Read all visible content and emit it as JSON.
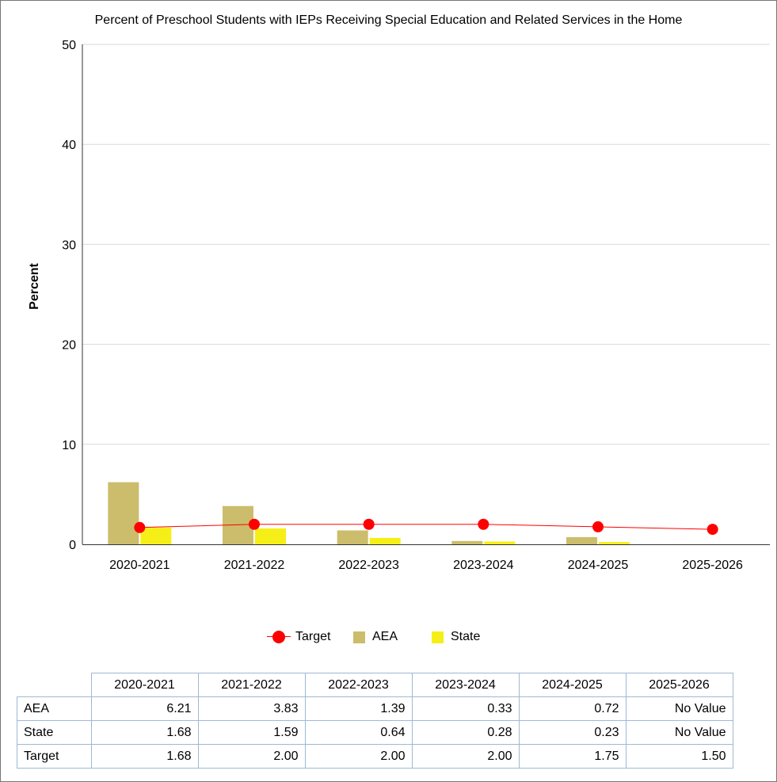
{
  "chart_data": {
    "type": "bar",
    "title": "Percent of Preschool Students with IEPs Receiving Special Education and Related Services in the Home",
    "ylabel": "Percent",
    "xlabel": "",
    "ylim": [
      0,
      50
    ],
    "yticks": [
      "0",
      "10",
      "20",
      "30",
      "40",
      "50"
    ],
    "grid": true,
    "legend_position": "bottom",
    "categories": [
      "2020-2021",
      "2021-2022",
      "2022-2023",
      "2023-2024",
      "2024-2025",
      "2025-2026"
    ],
    "series": [
      {
        "name": "Target",
        "kind": "line",
        "color": "#ff0000",
        "values": [
          1.68,
          2.0,
          2.0,
          2.0,
          1.75,
          1.5
        ]
      },
      {
        "name": "AEA",
        "kind": "bar",
        "color": "#cbbd6b",
        "values": [
          6.21,
          3.83,
          1.39,
          0.33,
          0.72,
          null
        ]
      },
      {
        "name": "State",
        "kind": "bar",
        "color": "#f6ef17",
        "values": [
          1.68,
          1.59,
          0.64,
          0.28,
          0.23,
          null
        ]
      }
    ]
  },
  "table": {
    "headers": [
      "2020-2021",
      "2021-2022",
      "2022-2023",
      "2023-2024",
      "2024-2025",
      "2025-2026"
    ],
    "rows": [
      {
        "label": "AEA",
        "cells": [
          "6.21",
          "3.83",
          "1.39",
          "0.33",
          "0.72",
          "No Value"
        ]
      },
      {
        "label": "State",
        "cells": [
          "1.68",
          "1.59",
          "0.64",
          "0.28",
          "0.23",
          "No Value"
        ]
      },
      {
        "label": "Target",
        "cells": [
          "1.68",
          "2.00",
          "2.00",
          "2.00",
          "1.75",
          "1.50"
        ]
      }
    ]
  }
}
